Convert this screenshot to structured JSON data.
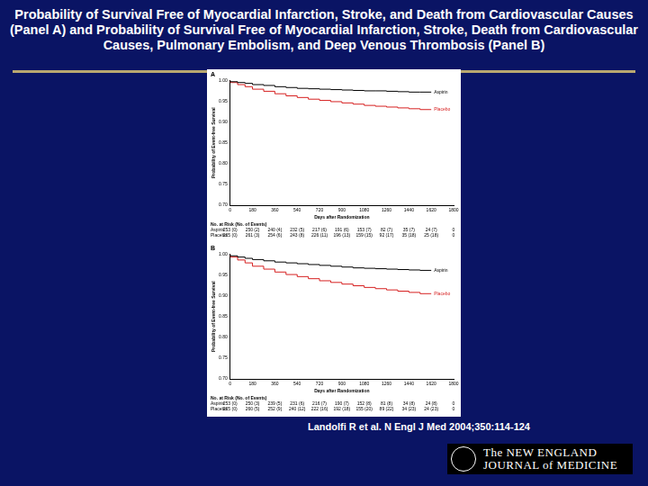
{
  "slide": {
    "title": "Probability of Survival Free of Myocardial Infarction, Stroke, and Death from Cardiovascular Causes (Panel A) and Probability of Survival Free of Myocardial Infarction, Stroke, Death from Cardiovascular Causes, Pulmonary Embolism, and Deep Venous Thrombosis (Panel B)",
    "citation": "Landolfi R et al. N Engl J Med 2004;350:114-124",
    "journal": [
      "The NEW ENGLAND",
      "JOURNAL of MEDICINE"
    ]
  },
  "chart_data": [
    {
      "type": "line",
      "title": "A",
      "x_label": "Days after Randomization",
      "y_label": "Probability of Event-free Survival",
      "x": [
        0,
        60,
        120,
        180,
        270,
        360,
        450,
        540,
        630,
        720,
        810,
        900,
        990,
        1080,
        1170,
        1260,
        1350,
        1440,
        1530,
        1620
      ],
      "series": [
        {
          "name": "Aspirin",
          "color": "#000000",
          "values": [
            1,
            0.997,
            0.995,
            0.993,
            0.99,
            0.988,
            0.985,
            0.983,
            0.981,
            0.98,
            0.979,
            0.978,
            0.977,
            0.976,
            0.975,
            0.975,
            0.974,
            0.973,
            0.972,
            0.972
          ]
        },
        {
          "name": "Placebo",
          "color": "#d62020",
          "values": [
            1,
            0.995,
            0.99,
            0.985,
            0.979,
            0.974,
            0.968,
            0.963,
            0.959,
            0.955,
            0.952,
            0.949,
            0.946,
            0.943,
            0.94,
            0.938,
            0.936,
            0.934,
            0.932,
            0.93
          ]
        }
      ],
      "xlim": [
        0,
        1800
      ],
      "xticks": [
        0,
        180,
        360,
        540,
        720,
        900,
        1080,
        1260,
        1440,
        1620,
        1800
      ],
      "ylim": [
        0.7,
        1.0
      ],
      "yticks": [
        {
          "value": 0.7,
          "label": "0.70"
        },
        {
          "value": 0.75,
          "label": "0.75"
        },
        {
          "value": 0.8,
          "label": "0.80"
        },
        {
          "value": 0.85,
          "label": "0.85"
        },
        {
          "value": 0.9,
          "label": "0.90"
        },
        {
          "value": 0.95,
          "label": "0.95"
        },
        {
          "value": 1.0,
          "label": "1.00"
        }
      ],
      "grid": false,
      "line_style": "step",
      "at_risk": {
        "header": "No. at Risk (No. of Events)",
        "rows": [
          {
            "name": "Aspirin",
            "values": [
              "253 (0)",
              "250 (2)",
              "240 (4)",
              "232 (5)",
              "217 (6)",
              "191 (6)",
              "153 (7)",
              "82 (7)",
              "35 (7)",
              "24 (7)",
              "0"
            ]
          },
          {
            "name": "Placebo",
            "values": [
              "265 (0)",
              "261 (3)",
              "254 (6)",
              "243 (8)",
              "226 (11)",
              "196 (13)",
              "159 (15)",
              "92 (17)",
              "35 (18)",
              "25 (18)",
              "0"
            ]
          }
        ]
      }
    },
    {
      "type": "line",
      "title": "B",
      "x_label": "Days after Randomization",
      "y_label": "Probability of Event-free Survival",
      "x": [
        0,
        60,
        120,
        180,
        270,
        360,
        450,
        540,
        630,
        720,
        810,
        900,
        990,
        1080,
        1170,
        1260,
        1350,
        1440,
        1530,
        1620
      ],
      "series": [
        {
          "name": "Aspirin",
          "color": "#000000",
          "values": [
            1,
            0.996,
            0.993,
            0.99,
            0.987,
            0.984,
            0.981,
            0.979,
            0.977,
            0.975,
            0.973,
            0.971,
            0.969,
            0.967,
            0.966,
            0.965,
            0.964,
            0.963,
            0.962,
            0.961
          ]
        },
        {
          "name": "Placebo",
          "color": "#d62020",
          "values": [
            1,
            0.993,
            0.986,
            0.979,
            0.971,
            0.964,
            0.957,
            0.951,
            0.946,
            0.941,
            0.936,
            0.932,
            0.928,
            0.924,
            0.92,
            0.917,
            0.914,
            0.911,
            0.908,
            0.905
          ]
        }
      ],
      "xlim": [
        0,
        1800
      ],
      "xticks": [
        0,
        180,
        360,
        540,
        720,
        900,
        1080,
        1260,
        1440,
        1620,
        1800
      ],
      "ylim": [
        0.7,
        1.0
      ],
      "yticks": [
        {
          "value": 0.7,
          "label": "0.70"
        },
        {
          "value": 0.75,
          "label": "0.75"
        },
        {
          "value": 0.8,
          "label": "0.80"
        },
        {
          "value": 0.85,
          "label": "0.85"
        },
        {
          "value": 0.9,
          "label": "0.90"
        },
        {
          "value": 0.95,
          "label": "0.95"
        },
        {
          "value": 1.0,
          "label": "1.00"
        }
      ],
      "grid": false,
      "line_style": "step",
      "at_risk": {
        "header": "No. at Risk (No. of Events)",
        "rows": [
          {
            "name": "Aspirin",
            "values": [
              "253 (0)",
              "250 (3)",
              "239 (5)",
              "231 (6)",
              "216 (7)",
              "190 (7)",
              "152 (8)",
              "81 (8)",
              "34 (8)",
              "24 (8)",
              "0"
            ]
          },
          {
            "name": "Placebo",
            "values": [
              "265 (0)",
              "260 (5)",
              "252 (9)",
              "240 (12)",
              "222 (16)",
              "192 (18)",
              "155 (20)",
              "89 (22)",
              "34 (23)",
              "24 (23)",
              "0"
            ]
          }
        ]
      }
    }
  ]
}
